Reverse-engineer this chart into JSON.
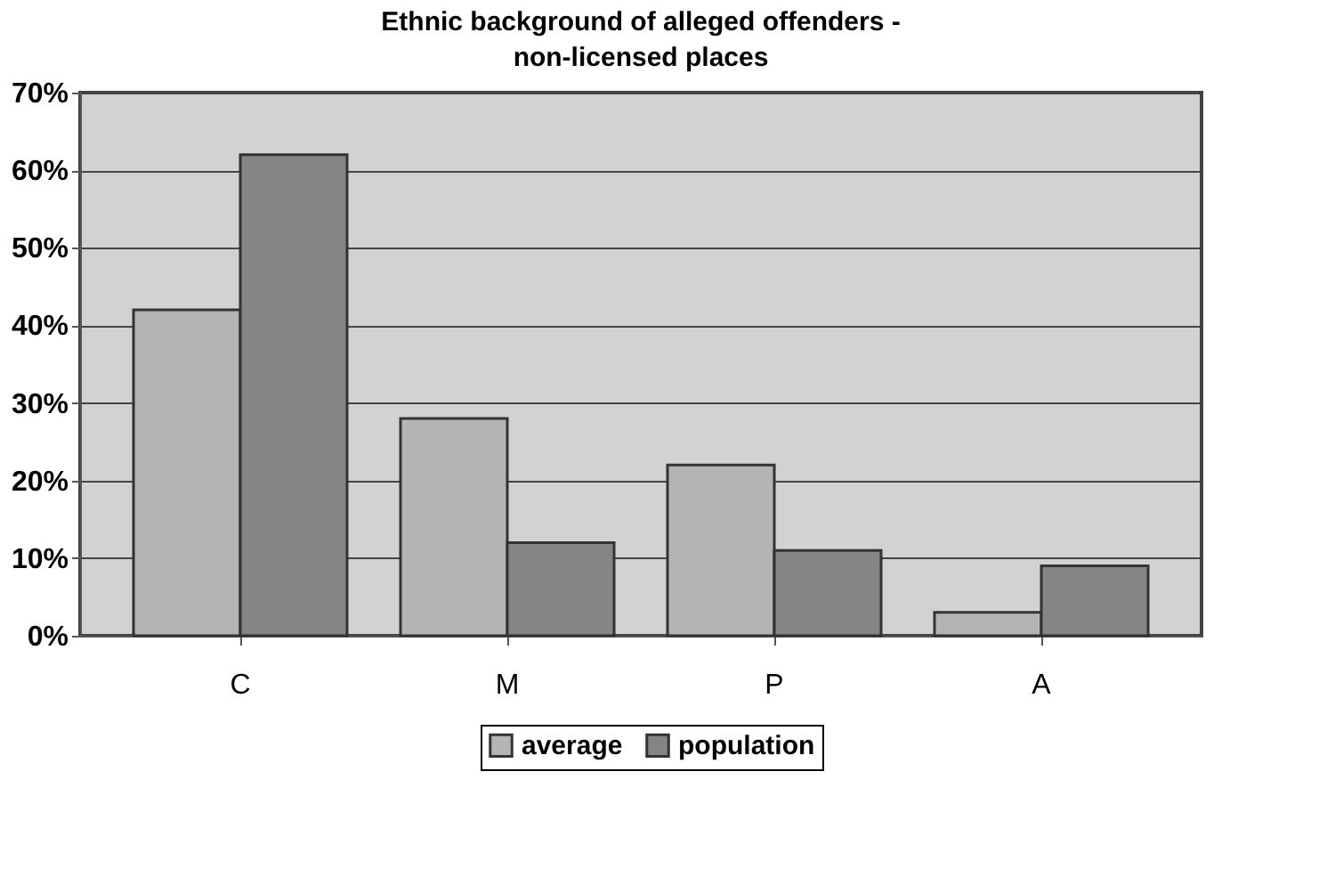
{
  "chart_data": {
    "type": "bar",
    "title": "Ethnic background of alleged offenders - non-licensed places",
    "categories": [
      "C",
      "M",
      "P",
      "A"
    ],
    "series": [
      {
        "name": "average",
        "color": "#b4b4b4",
        "values": [
          42,
          28,
          22,
          3
        ]
      },
      {
        "name": "population",
        "color": "#858585",
        "values": [
          62,
          12,
          11,
          9
        ]
      }
    ],
    "ylim": [
      0,
      70
    ],
    "yticks": [
      {
        "value": 0,
        "label": "0%"
      },
      {
        "value": 10,
        "label": "10%"
      },
      {
        "value": 20,
        "label": "20%"
      },
      {
        "value": 30,
        "label": "30%"
      },
      {
        "value": 40,
        "label": "40%"
      },
      {
        "value": 50,
        "label": "50%"
      },
      {
        "value": 60,
        "label": "60%"
      },
      {
        "value": 70,
        "label": "70%"
      }
    ],
    "grid": "y",
    "legend": "bottom"
  }
}
